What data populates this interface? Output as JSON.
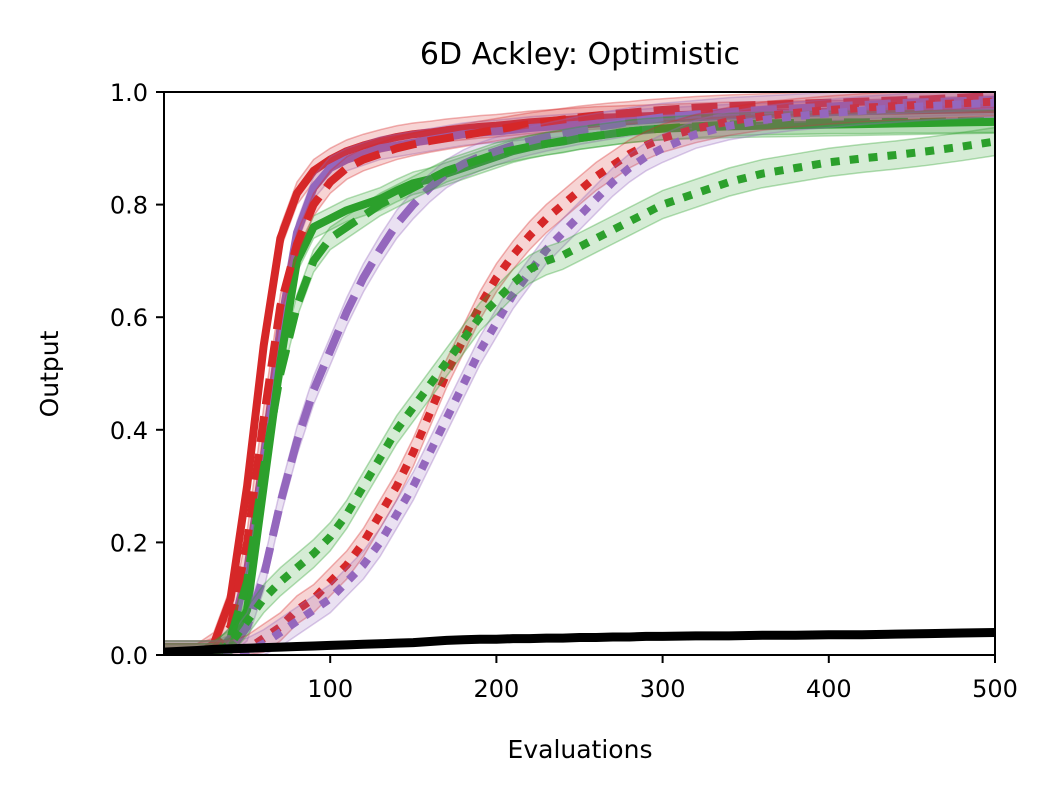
{
  "chart_data": {
    "type": "line",
    "title": "6D Ackley: Optimistic",
    "xlabel": "Evaluations",
    "ylabel": "Output",
    "xlim": [
      0,
      500
    ],
    "ylim": [
      0,
      1
    ],
    "xticks": [
      100,
      200,
      300,
      400,
      500
    ],
    "xtick_labels": [
      "100",
      "200",
      "300",
      "400",
      "500"
    ],
    "yticks": [
      0,
      0.2,
      0.4,
      0.6,
      0.8,
      1.0
    ],
    "ytick_labels": [
      "0.0",
      "0.2",
      "0.4",
      "0.6",
      "0.8",
      "1.0"
    ],
    "grid": false,
    "legend": "none",
    "x": [
      0,
      20,
      30,
      40,
      50,
      60,
      70,
      80,
      90,
      100,
      110,
      120,
      130,
      140,
      150,
      160,
      170,
      180,
      190,
      200,
      210,
      220,
      230,
      240,
      250,
      260,
      270,
      280,
      290,
      300,
      320,
      340,
      360,
      380,
      400,
      420,
      440,
      460,
      480,
      500
    ],
    "series": [
      {
        "name": "red-solid",
        "color": "#d62728",
        "style": "solid",
        "band": 0.02,
        "values": [
          0.0,
          0.0,
          0.02,
          0.1,
          0.3,
          0.55,
          0.74,
          0.82,
          0.86,
          0.88,
          0.895,
          0.905,
          0.913,
          0.92,
          0.925,
          0.928,
          0.932,
          0.935,
          0.938,
          0.94,
          0.943,
          0.946,
          0.948,
          0.95,
          0.952,
          0.954,
          0.955,
          0.956,
          0.957,
          0.958,
          0.96,
          0.962,
          0.963,
          0.964,
          0.965,
          0.966,
          0.967,
          0.968,
          0.969,
          0.97
        ]
      },
      {
        "name": "purple-solid",
        "color": "#9467bd",
        "style": "solid",
        "band": 0.02,
        "values": [
          0.0,
          0.0,
          0.0,
          0.03,
          0.15,
          0.35,
          0.58,
          0.75,
          0.83,
          0.865,
          0.88,
          0.89,
          0.9,
          0.905,
          0.91,
          0.915,
          0.92,
          0.925,
          0.928,
          0.93,
          0.933,
          0.936,
          0.938,
          0.94,
          0.942,
          0.944,
          0.946,
          0.948,
          0.95,
          0.952,
          0.955,
          0.958,
          0.96,
          0.962,
          0.964,
          0.966,
          0.968,
          0.97,
          0.972,
          0.975
        ]
      },
      {
        "name": "green-solid",
        "color": "#2ca02c",
        "style": "solid",
        "band": 0.02,
        "values": [
          0.0,
          0.0,
          0.0,
          0.01,
          0.08,
          0.3,
          0.52,
          0.7,
          0.76,
          0.775,
          0.79,
          0.8,
          0.81,
          0.825,
          0.838,
          0.845,
          0.855,
          0.865,
          0.875,
          0.885,
          0.895,
          0.902,
          0.908,
          0.912,
          0.918,
          0.922,
          0.926,
          0.93,
          0.933,
          0.935,
          0.937,
          0.939,
          0.94,
          0.941,
          0.942,
          0.943,
          0.944,
          0.945,
          0.946,
          0.947
        ]
      },
      {
        "name": "red-dashed",
        "color": "#d62728",
        "style": "dashed",
        "band": 0.02,
        "values": [
          0.0,
          0.0,
          0.01,
          0.05,
          0.2,
          0.42,
          0.62,
          0.73,
          0.8,
          0.84,
          0.865,
          0.88,
          0.89,
          0.9,
          0.907,
          0.913,
          0.918,
          0.923,
          0.928,
          0.933,
          0.938,
          0.943,
          0.947,
          0.951,
          0.955,
          0.958,
          0.961,
          0.963,
          0.966,
          0.968,
          0.972,
          0.975,
          0.977,
          0.979,
          0.981,
          0.983,
          0.985,
          0.987,
          0.99,
          0.993
        ]
      },
      {
        "name": "purple-dashed",
        "color": "#9467bd",
        "style": "dashed",
        "band": 0.025,
        "values": [
          0.0,
          0.0,
          0.0,
          0.01,
          0.05,
          0.14,
          0.27,
          0.38,
          0.47,
          0.54,
          0.61,
          0.67,
          0.72,
          0.765,
          0.8,
          0.83,
          0.855,
          0.872,
          0.885,
          0.895,
          0.905,
          0.913,
          0.92,
          0.926,
          0.932,
          0.937,
          0.942,
          0.947,
          0.951,
          0.955,
          0.96,
          0.965,
          0.968,
          0.971,
          0.974,
          0.977,
          0.98,
          0.982,
          0.984,
          0.986
        ]
      },
      {
        "name": "green-dashed",
        "color": "#2ca02c",
        "style": "dashed",
        "band": 0.02,
        "values": [
          0.0,
          0.0,
          0.0,
          0.03,
          0.13,
          0.33,
          0.5,
          0.62,
          0.7,
          0.74,
          0.76,
          0.78,
          0.8,
          0.815,
          0.83,
          0.845,
          0.86,
          0.87,
          0.88,
          0.89,
          0.897,
          0.903,
          0.908,
          0.913,
          0.918,
          0.922,
          0.926,
          0.93,
          0.933,
          0.935,
          0.939,
          0.942,
          0.944,
          0.945,
          0.946,
          0.946,
          0.947,
          0.947,
          0.948,
          0.948
        ]
      },
      {
        "name": "red-dotted",
        "color": "#d62728",
        "style": "dotted",
        "band": 0.025,
        "values": [
          0.0,
          0.0,
          0.0,
          0.0,
          0.01,
          0.03,
          0.05,
          0.08,
          0.1,
          0.13,
          0.16,
          0.2,
          0.25,
          0.3,
          0.36,
          0.43,
          0.5,
          0.56,
          0.62,
          0.67,
          0.71,
          0.745,
          0.775,
          0.8,
          0.825,
          0.85,
          0.87,
          0.89,
          0.905,
          0.918,
          0.935,
          0.948,
          0.957,
          0.963,
          0.968,
          0.972,
          0.975,
          0.978,
          0.98,
          0.983
        ]
      },
      {
        "name": "purple-dotted",
        "color": "#9467bd",
        "style": "dotted",
        "band": 0.025,
        "values": [
          0.0,
          0.0,
          0.0,
          0.0,
          0.005,
          0.02,
          0.04,
          0.06,
          0.08,
          0.1,
          0.13,
          0.16,
          0.2,
          0.25,
          0.3,
          0.36,
          0.42,
          0.48,
          0.54,
          0.59,
          0.64,
          0.68,
          0.72,
          0.75,
          0.78,
          0.81,
          0.84,
          0.865,
          0.885,
          0.9,
          0.925,
          0.94,
          0.95,
          0.957,
          0.962,
          0.967,
          0.971,
          0.975,
          0.978,
          0.981
        ]
      },
      {
        "name": "green-dotted",
        "color": "#2ca02c",
        "style": "dotted",
        "band": 0.025,
        "values": [
          0.0,
          0.0,
          0.0,
          0.02,
          0.06,
          0.1,
          0.13,
          0.155,
          0.18,
          0.21,
          0.25,
          0.3,
          0.35,
          0.4,
          0.44,
          0.48,
          0.52,
          0.56,
          0.6,
          0.63,
          0.66,
          0.685,
          0.7,
          0.71,
          0.725,
          0.74,
          0.755,
          0.77,
          0.785,
          0.8,
          0.82,
          0.84,
          0.855,
          0.865,
          0.875,
          0.882,
          0.888,
          0.895,
          0.903,
          0.912
        ]
      },
      {
        "name": "black-solid",
        "color": "#000000",
        "style": "solid",
        "band": 0.0,
        "values": [
          0.005,
          0.008,
          0.01,
          0.011,
          0.012,
          0.013,
          0.014,
          0.015,
          0.016,
          0.017,
          0.018,
          0.019,
          0.02,
          0.021,
          0.022,
          0.024,
          0.026,
          0.027,
          0.028,
          0.028,
          0.029,
          0.029,
          0.03,
          0.03,
          0.031,
          0.031,
          0.032,
          0.032,
          0.033,
          0.033,
          0.034,
          0.034,
          0.035,
          0.035,
          0.036,
          0.036,
          0.037,
          0.038,
          0.039,
          0.04
        ]
      }
    ]
  }
}
